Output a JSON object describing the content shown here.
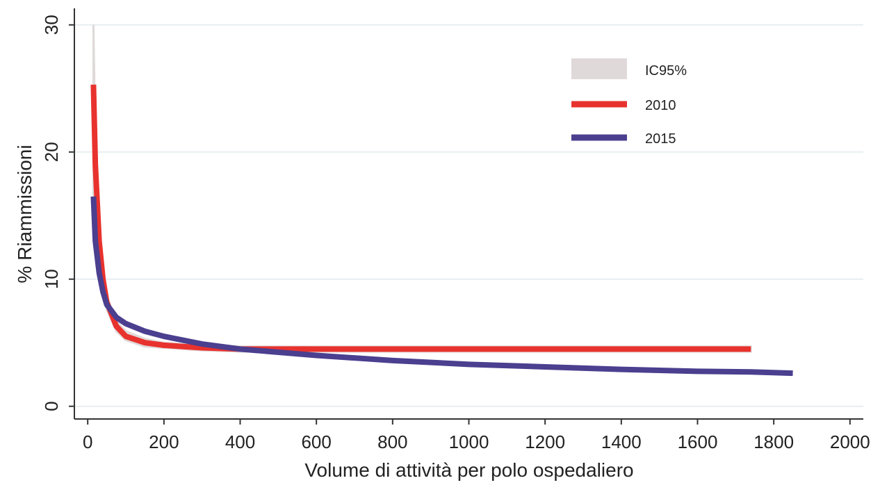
{
  "chart_data": {
    "type": "line",
    "xlabel": "Volume di attività per polo ospedaliero",
    "ylabel": "% Riammissioni",
    "x": [
      15,
      20,
      30,
      40,
      50,
      75,
      100,
      150,
      200,
      300,
      400,
      600,
      800,
      1000,
      1200,
      1400,
      1600,
      1740,
      1850
    ],
    "band": {
      "name": "IC95%",
      "color": "#e0d9d9",
      "upper": [
        30,
        21,
        14,
        10.6,
        8.6,
        6.7,
        5.9,
        5.3,
        5.0,
        4.8,
        4.7,
        4.7,
        4.7,
        4.7,
        4.7,
        4.7,
        4.7,
        4.7,
        null
      ],
      "lower": [
        14,
        12.5,
        10,
        8.6,
        7.6,
        5.9,
        5.2,
        4.7,
        4.6,
        4.4,
        4.3,
        4.3,
        4.3,
        4.3,
        4.3,
        4.3,
        4.3,
        4.3,
        null
      ]
    },
    "series": [
      {
        "name": "2010",
        "color": "#e8322e",
        "values": [
          25.3,
          19,
          13,
          10,
          8.2,
          6.3,
          5.5,
          5.0,
          4.8,
          4.6,
          4.5,
          4.5,
          4.5,
          4.5,
          4.5,
          4.5,
          4.5,
          4.5,
          null
        ]
      },
      {
        "name": "2015",
        "color": "#4b3f8f",
        "values": [
          16.5,
          13,
          10.5,
          9,
          8,
          7,
          6.5,
          5.9,
          5.5,
          4.9,
          4.5,
          4.0,
          3.6,
          3.3,
          3.1,
          2.9,
          2.75,
          2.7,
          2.6
        ]
      }
    ],
    "xlim": [
      -35,
      2035
    ],
    "ylim": [
      -1,
      31.3
    ],
    "xticks": [
      0,
      200,
      400,
      600,
      800,
      1000,
      1200,
      1400,
      1600,
      1800,
      2000
    ],
    "yticks": [
      0,
      10,
      20,
      30
    ],
    "grid": true,
    "legend": "upper right"
  }
}
